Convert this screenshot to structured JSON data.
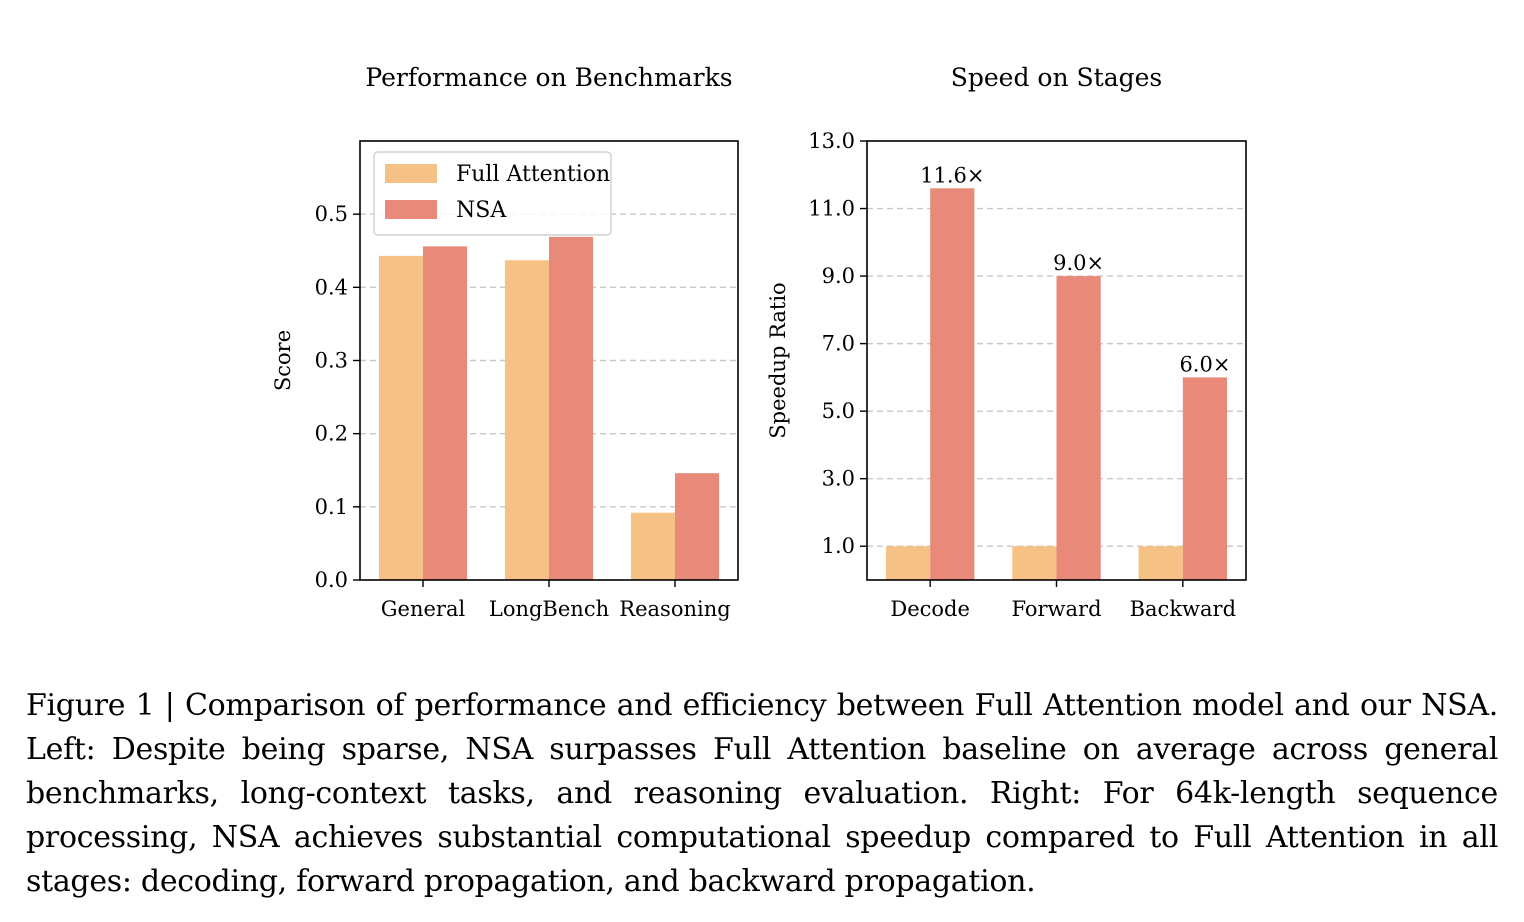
{
  "chart_data": [
    {
      "type": "bar",
      "title": "Performance on Benchmarks",
      "xlabel": "",
      "ylabel": "Score",
      "ylim": [
        0,
        0.6
      ],
      "yticks": [
        "0.0",
        "0.1",
        "0.2",
        "0.3",
        "0.4",
        "0.5"
      ],
      "grid": "horizontal dashed",
      "legend_position": "top-left",
      "categories": [
        "General",
        "LongBench",
        "Reasoning"
      ],
      "series": [
        {
          "name": "Full Attention",
          "color": "#f5c185",
          "values": [
            0.443,
            0.437,
            0.092
          ]
        },
        {
          "name": "NSA",
          "color": "#e9897a",
          "values": [
            0.456,
            0.469,
            0.146
          ]
        }
      ]
    },
    {
      "type": "bar",
      "title": "Speed on Stages",
      "xlabel": "",
      "ylabel": "Speedup Ratio",
      "ylim": [
        0,
        13
      ],
      "yticks": [
        "1.0",
        "3.0",
        "5.0",
        "7.0",
        "9.0",
        "11.0",
        "13.0"
      ],
      "grid": "horizontal dashed",
      "categories": [
        "Decode",
        "Forward",
        "Backward"
      ],
      "series": [
        {
          "name": "Full Attention",
          "color": "#f5c185",
          "values": [
            1.0,
            1.0,
            1.0
          ]
        },
        {
          "name": "NSA",
          "color": "#e9897a",
          "values": [
            11.6,
            9.0,
            6.0
          ]
        }
      ],
      "annotations": [
        "11.6×",
        "9.0×",
        "6.0×"
      ]
    }
  ],
  "caption": {
    "label": "Figure 1 | ",
    "text": "Comparison of performance and efficiency between Full Attention model and our NSA. Left: Despite being sparse, NSA surpasses Full Attention baseline on average across general benchmarks, long-context tasks, and reasoning evaluation. Right: For 64k-length sequence processing, NSA achieves substantial computational speedup compared to Full Attention in all stages: decoding, forward propagation, and backward propagation."
  }
}
